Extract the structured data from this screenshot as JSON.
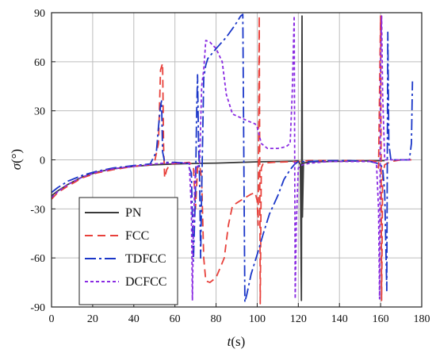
{
  "chart_data": {
    "type": "line",
    "xlabel": {
      "main": "t",
      "unit": "(s)"
    },
    "ylabel": {
      "main": "σ",
      "unit": "(°)"
    },
    "xlim": [
      0,
      180
    ],
    "ylim": [
      -90,
      90
    ],
    "xticks": [
      0,
      20,
      40,
      60,
      80,
      100,
      120,
      140,
      160,
      180
    ],
    "yticks": [
      -90,
      -60,
      -30,
      0,
      30,
      60,
      90
    ],
    "grid": true,
    "legend_position": "bottom-left",
    "series": [
      {
        "name": "PN",
        "color": "#3a3a3a",
        "dash": "solid",
        "points": [
          [
            0,
            -22
          ],
          [
            3,
            -19
          ],
          [
            8,
            -15
          ],
          [
            15,
            -10.5
          ],
          [
            22,
            -7.5
          ],
          [
            30,
            -5.5
          ],
          [
            40,
            -4
          ],
          [
            50,
            -3
          ],
          [
            60,
            -2.5
          ],
          [
            70,
            -2.2
          ],
          [
            80,
            -2
          ],
          [
            90,
            -1.6
          ],
          [
            100,
            -1.2
          ],
          [
            110,
            -1
          ],
          [
            118,
            -0.8
          ],
          [
            120,
            -0.6
          ],
          [
            121,
            -3
          ],
          [
            121.5,
            -86
          ],
          [
            121.8,
            88
          ],
          [
            122,
            -35
          ],
          [
            122.5,
            -2
          ],
          [
            126,
            -1.2
          ],
          [
            135,
            -1
          ],
          [
            145,
            -0.8
          ],
          [
            155,
            -0.6
          ],
          [
            162,
            -0.5
          ]
        ]
      },
      {
        "name": "FCC",
        "color": "#e8413b",
        "dash": "10,6",
        "points": [
          [
            0,
            -24
          ],
          [
            3,
            -20
          ],
          [
            8,
            -16
          ],
          [
            15,
            -11
          ],
          [
            22,
            -8
          ],
          [
            30,
            -6
          ],
          [
            40,
            -4
          ],
          [
            48,
            -3
          ],
          [
            50,
            -2
          ],
          [
            52,
            10
          ],
          [
            53,
            55
          ],
          [
            54,
            59
          ],
          [
            54.5,
            8
          ],
          [
            55,
            -11
          ],
          [
            56,
            -6
          ],
          [
            57,
            -4
          ],
          [
            58,
            -2.5
          ],
          [
            62,
            -2
          ],
          [
            67,
            -1.5
          ],
          [
            69,
            -4
          ],
          [
            70,
            -30
          ],
          [
            71,
            -5
          ],
          [
            72,
            -3
          ],
          [
            73,
            -12
          ],
          [
            74,
            -60
          ],
          [
            75,
            -74
          ],
          [
            77,
            -75
          ],
          [
            80,
            -72
          ],
          [
            84,
            -60
          ],
          [
            86,
            -40
          ],
          [
            88,
            -28
          ],
          [
            93,
            -24
          ],
          [
            97,
            -21
          ],
          [
            99,
            -20
          ],
          [
            100,
            -25
          ],
          [
            100.5,
            -40
          ],
          [
            101,
            88
          ],
          [
            101.5,
            -88
          ],
          [
            102,
            -5
          ],
          [
            103,
            -2
          ],
          [
            108,
            -1.5
          ],
          [
            115,
            -1.2
          ],
          [
            120,
            -1
          ],
          [
            125,
            -0.5
          ],
          [
            135,
            -0.5
          ],
          [
            145,
            -0.5
          ],
          [
            155,
            -0.5
          ],
          [
            158,
            -1
          ],
          [
            159,
            -5
          ],
          [
            160,
            88
          ],
          [
            160.5,
            -86
          ],
          [
            161,
            -10
          ],
          [
            162,
            -3
          ],
          [
            165,
            -1
          ],
          [
            170,
            0
          ],
          [
            175,
            0
          ]
        ]
      },
      {
        "name": "TDFCC",
        "color": "#1a36c8",
        "dash": "14,4,3,4",
        "points": [
          [
            0,
            -20
          ],
          [
            3,
            -17
          ],
          [
            8,
            -13
          ],
          [
            15,
            -9.5
          ],
          [
            22,
            -7
          ],
          [
            30,
            -5
          ],
          [
            40,
            -3.5
          ],
          [
            48,
            -2.5
          ],
          [
            51,
            5
          ],
          [
            52,
            20
          ],
          [
            53,
            33
          ],
          [
            53.5,
            36
          ],
          [
            54,
            5
          ],
          [
            55,
            -1.5
          ],
          [
            60,
            -1.5
          ],
          [
            66,
            -2
          ],
          [
            68,
            -8
          ],
          [
            69,
            -62
          ],
          [
            70,
            -20
          ],
          [
            70.5,
            25
          ],
          [
            71,
            52
          ],
          [
            71.5,
            10
          ],
          [
            72,
            -12
          ],
          [
            72.5,
            -60
          ],
          [
            73,
            -20
          ],
          [
            74,
            50
          ],
          [
            75,
            58
          ],
          [
            76,
            62
          ],
          [
            80,
            68
          ],
          [
            85,
            75
          ],
          [
            89,
            82
          ],
          [
            92,
            88
          ],
          [
            93,
            89
          ],
          [
            94,
            -87
          ],
          [
            95,
            -82
          ],
          [
            97,
            -70
          ],
          [
            100,
            -58
          ],
          [
            103,
            -45
          ],
          [
            106,
            -33
          ],
          [
            110,
            -22
          ],
          [
            113,
            -12
          ],
          [
            116,
            -6
          ],
          [
            118,
            -3
          ],
          [
            119,
            -2
          ],
          [
            120,
            -1
          ],
          [
            125,
            -1
          ],
          [
            135,
            -0.5
          ],
          [
            145,
            -0.5
          ],
          [
            155,
            -1
          ],
          [
            158,
            -2
          ],
          [
            160,
            -3
          ],
          [
            161,
            -5
          ],
          [
            162,
            -20
          ],
          [
            162.5,
            -50
          ],
          [
            163,
            -80
          ],
          [
            163.5,
            78
          ],
          [
            164,
            10
          ],
          [
            165,
            0
          ],
          [
            170,
            0
          ],
          [
            174,
            0
          ],
          [
            175,
            10
          ],
          [
            175.5,
            48
          ]
        ]
      },
      {
        "name": "DCFCC",
        "color": "#8a2be2",
        "dash": "4,3",
        "points": [
          [
            0,
            -23
          ],
          [
            3,
            -19.5
          ],
          [
            8,
            -15
          ],
          [
            15,
            -10.5
          ],
          [
            22,
            -7.5
          ],
          [
            30,
            -5.5
          ],
          [
            40,
            -4
          ],
          [
            48,
            -3
          ],
          [
            50,
            -2.5
          ],
          [
            55,
            -2
          ],
          [
            60,
            -2
          ],
          [
            65,
            -2
          ],
          [
            67,
            -2
          ],
          [
            68,
            -30
          ],
          [
            68.5,
            -86
          ],
          [
            69,
            -40
          ],
          [
            70,
            -5
          ],
          [
            72,
            -3
          ],
          [
            73,
            45
          ],
          [
            74,
            55
          ],
          [
            75,
            73
          ],
          [
            77,
            72
          ],
          [
            80,
            68
          ],
          [
            83,
            60
          ],
          [
            85,
            40
          ],
          [
            88,
            28
          ],
          [
            95,
            24
          ],
          [
            99,
            22
          ],
          [
            100,
            20
          ],
          [
            102,
            10
          ],
          [
            105,
            7
          ],
          [
            110,
            7
          ],
          [
            114,
            8
          ],
          [
            116,
            10
          ],
          [
            117,
            40
          ],
          [
            118,
            88
          ],
          [
            118.5,
            -85
          ],
          [
            119,
            -40
          ],
          [
            120,
            -5
          ],
          [
            122,
            -3
          ],
          [
            126,
            -2
          ],
          [
            135,
            -1
          ],
          [
            145,
            -1
          ],
          [
            155,
            -1
          ],
          [
            158,
            -2
          ],
          [
            159,
            -30
          ],
          [
            159.5,
            -85
          ],
          [
            160,
            60
          ],
          [
            160.5,
            88
          ],
          [
            161,
            40
          ],
          [
            162,
            0
          ],
          [
            165,
            0
          ],
          [
            170,
            0
          ],
          [
            175,
            0
          ]
        ]
      }
    ]
  }
}
